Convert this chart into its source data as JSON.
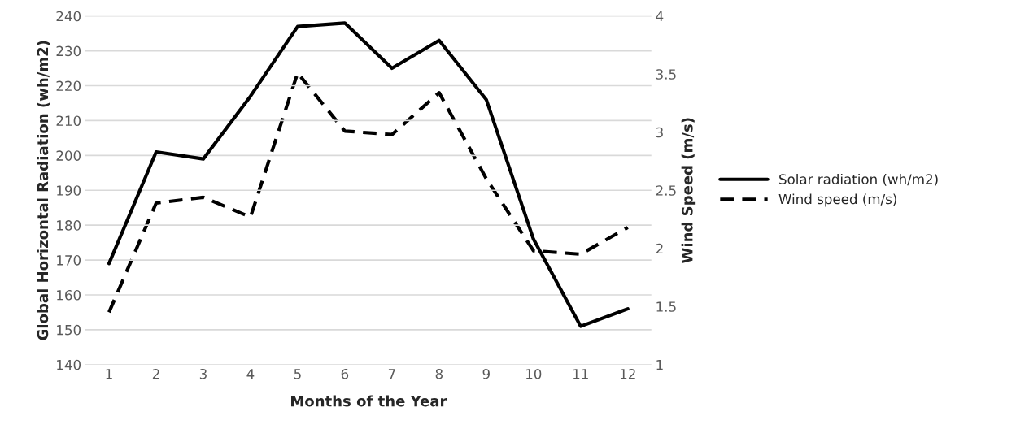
{
  "chart_data": {
    "type": "line",
    "categories": [
      "1",
      "2",
      "3",
      "4",
      "5",
      "6",
      "7",
      "8",
      "9",
      "10",
      "11",
      "12"
    ],
    "xlabel": "Months of the Year",
    "ylabel": "Global Horizontal Radiation (wh/m2)",
    "y2label": "Wind Speed (m/s)",
    "series": [
      {
        "name": "Solar radiation (wh/m2)",
        "color": "#000000",
        "line_style": "solid",
        "values": [
          169,
          201,
          199,
          217,
          237,
          238,
          225,
          233,
          216,
          176,
          151,
          156
        ]
      },
      {
        "name": "Wind speed (m/s)",
        "color": "#000000",
        "line_style": "dashed",
        "axis": "y2",
        "values": [
          1.45,
          2.39,
          2.44,
          2.27,
          3.51,
          3.01,
          2.98,
          3.34,
          2.6,
          1.98,
          1.95,
          2.18
        ]
      }
    ],
    "ylim": [
      140,
      240
    ],
    "yticks": [
      140,
      150,
      160,
      170,
      180,
      190,
      200,
      210,
      220,
      230,
      240
    ],
    "y2lim": [
      1,
      4
    ],
    "y2ticks": [
      1,
      1.5,
      2,
      2.5,
      3,
      3.5,
      4
    ],
    "grid": "y",
    "legend": "right",
    "marker": "none"
  }
}
